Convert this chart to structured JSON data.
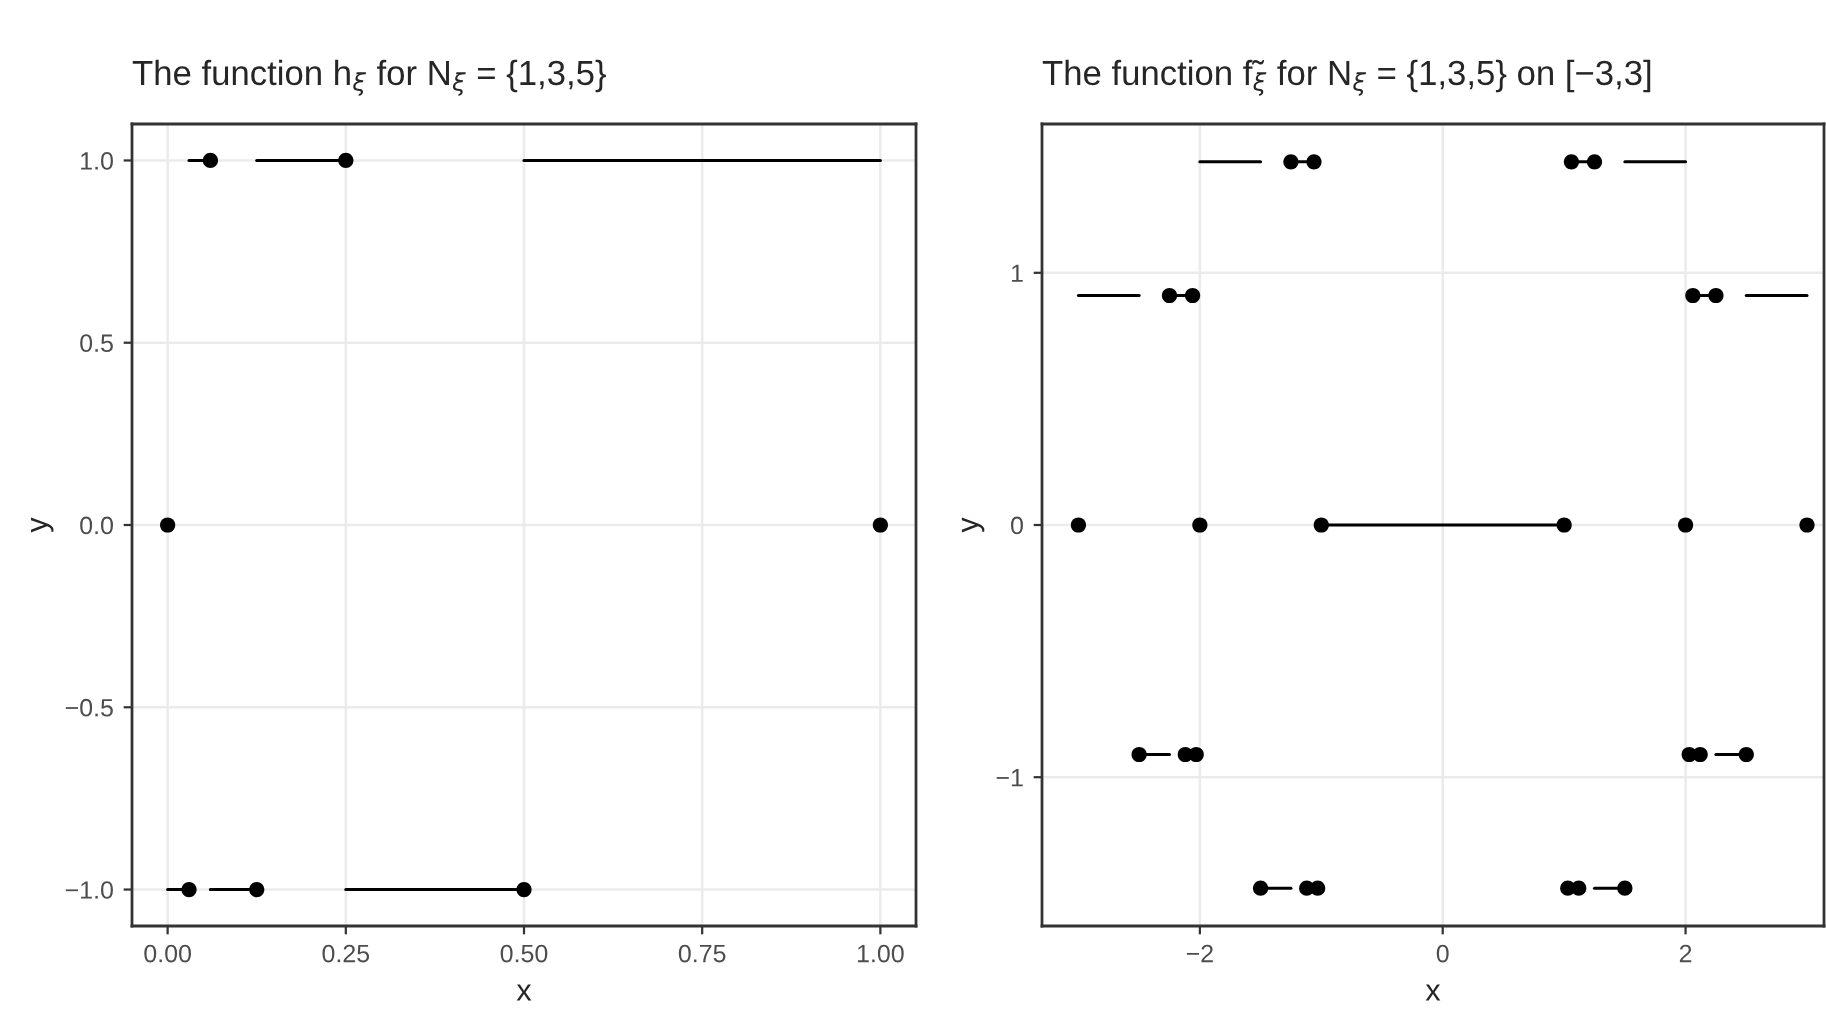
{
  "chart_data": [
    {
      "type": "line",
      "title": "The function h$_{ξ}$ for N$_{ξ}$ = {1,3,5}",
      "xlabel": "x",
      "ylabel": "y",
      "grid": true,
      "xlim": [
        -0.05,
        1.05
      ],
      "ylim": [
        -1.1,
        1.1
      ],
      "xticks": [
        {
          "value": 0,
          "label": "0.00"
        },
        {
          "value": 0.25,
          "label": "0.25"
        },
        {
          "value": 0.5,
          "label": "0.50"
        },
        {
          "value": 0.75,
          "label": "0.75"
        },
        {
          "value": 1,
          "label": "1.00"
        }
      ],
      "yticks": [
        {
          "value": -1,
          "label": "−1.0"
        },
        {
          "value": -0.5,
          "label": "−0.5"
        },
        {
          "value": 0,
          "label": "0.0"
        },
        {
          "value": 0.5,
          "label": "0.5"
        },
        {
          "value": 1,
          "label": "1.0"
        }
      ],
      "series": [
        {
          "color": "#000000",
          "x": [
            0.03,
            0.06
          ],
          "values": [
            1,
            1
          ]
        },
        {
          "color": "#000000",
          "x": [
            0.125,
            0.25
          ],
          "values": [
            1,
            1
          ]
        },
        {
          "color": "#000000",
          "x": [
            0.5,
            1
          ],
          "values": [
            1,
            1
          ]
        },
        {
          "color": "#000000",
          "x": [
            0,
            0.03
          ],
          "values": [
            -1,
            -1
          ]
        },
        {
          "color": "#000000",
          "x": [
            0.06,
            0.125
          ],
          "values": [
            -1,
            -1
          ]
        },
        {
          "color": "#000000",
          "x": [
            0.25,
            0.5
          ],
          "values": [
            -1,
            -1
          ]
        },
        {
          "type": "scatter",
          "color": "#000000",
          "marker": "circle",
          "x": [
            0.06,
            0.25,
            0,
            1,
            0.03,
            0.125,
            0.5
          ],
          "values": [
            1,
            1,
            0,
            0,
            -1,
            -1,
            -1
          ]
        }
      ]
    },
    {
      "type": "line",
      "title": "The function f̃$_{ξ}$ for N$_{ξ}$ = {1,3,5} on [−3,3]",
      "xlabel": "x",
      "ylabel": "y",
      "grid": true,
      "xlim": [
        -3.3,
        3.14
      ],
      "ylim": [
        -1.59,
        1.59
      ],
      "xticks": [
        {
          "value": -2,
          "label": "−2"
        },
        0,
        2
      ],
      "yticks": [
        {
          "value": -1,
          "label": "−1"
        },
        0,
        1
      ],
      "series": [
        {
          "color": "#000000",
          "x": [
            -2,
            -1.5
          ],
          "values": [
            1.44,
            1.44
          ]
        },
        {
          "color": "#000000",
          "x": [
            -1.25,
            -1.12
          ],
          "values": [
            1.44,
            1.44
          ]
        },
        {
          "color": "#000000",
          "x": [
            1.12,
            1.25
          ],
          "values": [
            1.44,
            1.44
          ]
        },
        {
          "color": "#000000",
          "x": [
            1.5,
            2
          ],
          "values": [
            1.44,
            1.44
          ]
        },
        {
          "color": "#000000",
          "x": [
            -3,
            -2.5
          ],
          "values": [
            0.91,
            0.91
          ]
        },
        {
          "color": "#000000",
          "x": [
            -2.25,
            -2.12
          ],
          "values": [
            0.91,
            0.91
          ]
        },
        {
          "color": "#000000",
          "x": [
            2.12,
            2.25
          ],
          "values": [
            0.91,
            0.91
          ]
        },
        {
          "color": "#000000",
          "x": [
            2.5,
            3
          ],
          "values": [
            0.91,
            0.91
          ]
        },
        {
          "color": "#000000",
          "x": [
            -1,
            1
          ],
          "values": [
            0,
            0
          ]
        },
        {
          "color": "#000000",
          "x": [
            -2.5,
            -2.25
          ],
          "values": [
            -0.91,
            -0.91
          ]
        },
        {
          "color": "#000000",
          "x": [
            2.25,
            2.5
          ],
          "values": [
            -0.91,
            -0.91
          ]
        },
        {
          "color": "#000000",
          "x": [
            -1.5,
            -1.25
          ],
          "values": [
            -1.44,
            -1.44
          ]
        },
        {
          "color": "#000000",
          "x": [
            1.25,
            1.5
          ],
          "values": [
            -1.44,
            -1.44
          ]
        },
        {
          "type": "scatter",
          "color": "#000000",
          "marker": "circle",
          "x": [
            -1.25,
            -1.06,
            1.06,
            1.25,
            -2.25,
            -2.06,
            2.06,
            2.25,
            -3,
            -2,
            -1,
            1,
            2,
            3,
            -2.5,
            -2.12,
            -2.03,
            2.03,
            2.12,
            2.5,
            -1.5,
            -1.12,
            -1.03,
            1.03,
            1.12,
            1.5
          ],
          "values": [
            1.44,
            1.44,
            1.44,
            1.44,
            0.91,
            0.91,
            0.91,
            0.91,
            0,
            0,
            0,
            0,
            0,
            0,
            -0.91,
            -0.91,
            -0.91,
            -0.91,
            -0.91,
            -0.91,
            -1.44,
            -1.44,
            -1.44,
            -1.44,
            -1.44,
            -1.44
          ]
        }
      ]
    }
  ]
}
